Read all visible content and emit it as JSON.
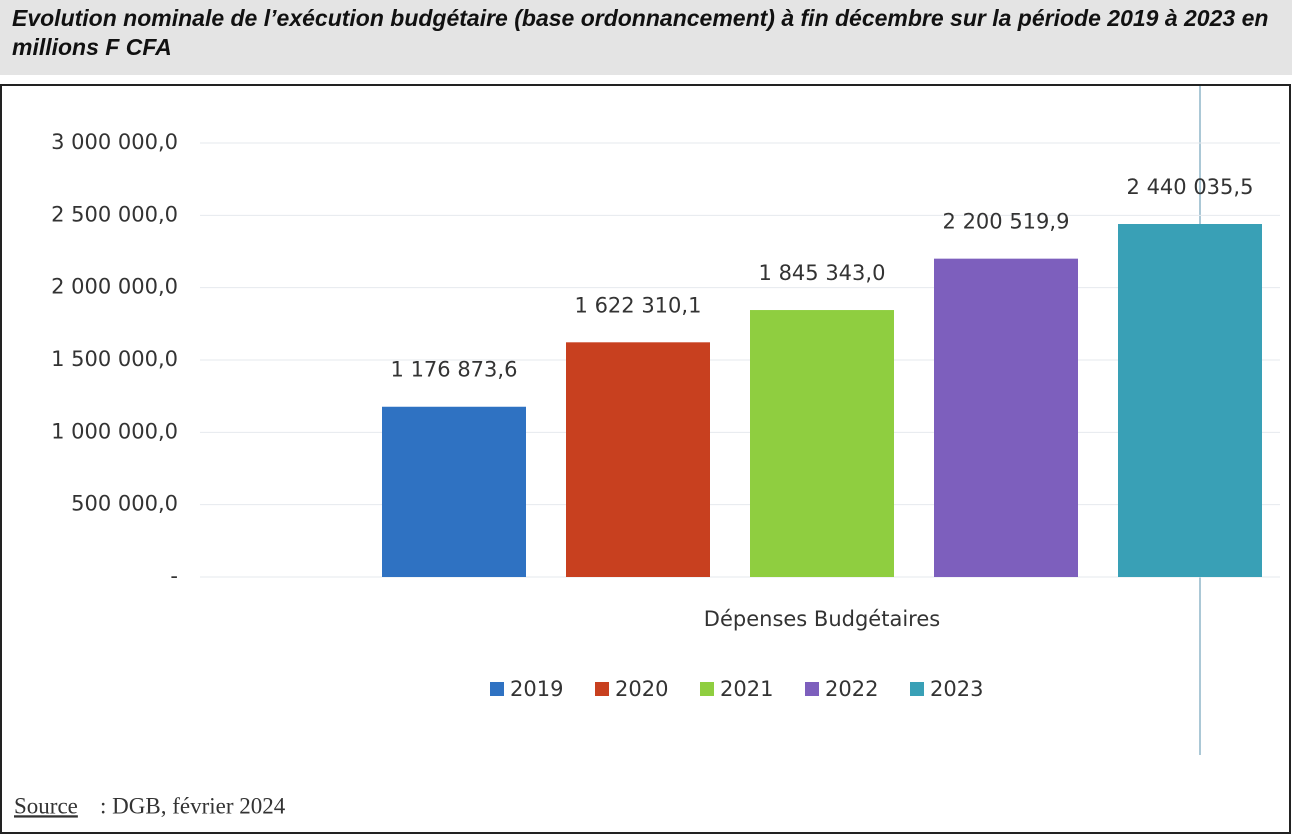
{
  "chart_data": {
    "type": "bar",
    "title": "Evolution nominale de l’exécution budgétaire (base ordonnancement) à fin décembre sur la période 2019 à 2023 en millions F CFA",
    "categories": [
      "Dépenses Budgétaires"
    ],
    "series": [
      {
        "name": "2019",
        "color": "#2f72c2",
        "values": [
          1176873.6
        ],
        "value_labels": [
          "1 176 873,6"
        ]
      },
      {
        "name": "2020",
        "color": "#c8401f",
        "values": [
          1622310.1
        ],
        "value_labels": [
          "1 622 310,1"
        ]
      },
      {
        "name": "2021",
        "color": "#8fce40",
        "values": [
          1845343.0
        ],
        "value_labels": [
          "1 845 343,0"
        ]
      },
      {
        "name": "2022",
        "color": "#7d5fbd",
        "values": [
          2200519.9
        ],
        "value_labels": [
          "2 200 519,9"
        ]
      },
      {
        "name": "2023",
        "color": "#39a0b6",
        "values": [
          2440035.5
        ],
        "value_labels": [
          "2 440 035,5"
        ]
      }
    ],
    "ylim": [
      0,
      3000000
    ],
    "yticks": [
      {
        "value": 0,
        "label": "-"
      },
      {
        "value": 500000,
        "label": "500 000,0"
      },
      {
        "value": 1000000,
        "label": "1 000 000,0"
      },
      {
        "value": 1500000,
        "label": "1 500 000,0"
      },
      {
        "value": 2000000,
        "label": "2 000 000,0"
      },
      {
        "value": 2500000,
        "label": "2 500 000,0"
      },
      {
        "value": 3000000,
        "label": "3 000 000,0"
      }
    ],
    "grid": true,
    "legend": "bottom",
    "source_label": "Source",
    "source_text": ": DGB, février 2024"
  }
}
